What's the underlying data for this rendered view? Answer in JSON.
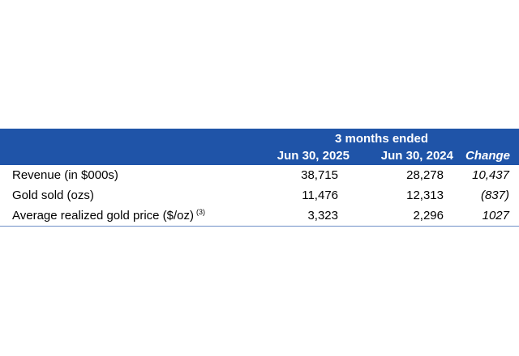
{
  "table": {
    "period_label": "3 months ended",
    "columns": {
      "current": "Jun 30, 2025",
      "prior": "Jun 30, 2024",
      "change": "Change"
    },
    "rows": [
      {
        "label": "Revenue (in $000s)",
        "footnote": "",
        "current": "38,715",
        "prior": "28,278",
        "change": "10,437"
      },
      {
        "label": "Gold sold (ozs)",
        "footnote": "",
        "current": "11,476",
        "prior": "12,313",
        "change": "(837)"
      },
      {
        "label": "Average realized gold price ($/oz)",
        "footnote": "(3)",
        "current": "3,323",
        "prior": "2,296",
        "change": "1027"
      }
    ]
  },
  "colors": {
    "header_background": "#1f54a8",
    "header_text": "#ffffff",
    "bottom_rule": "#6d8fc7"
  }
}
